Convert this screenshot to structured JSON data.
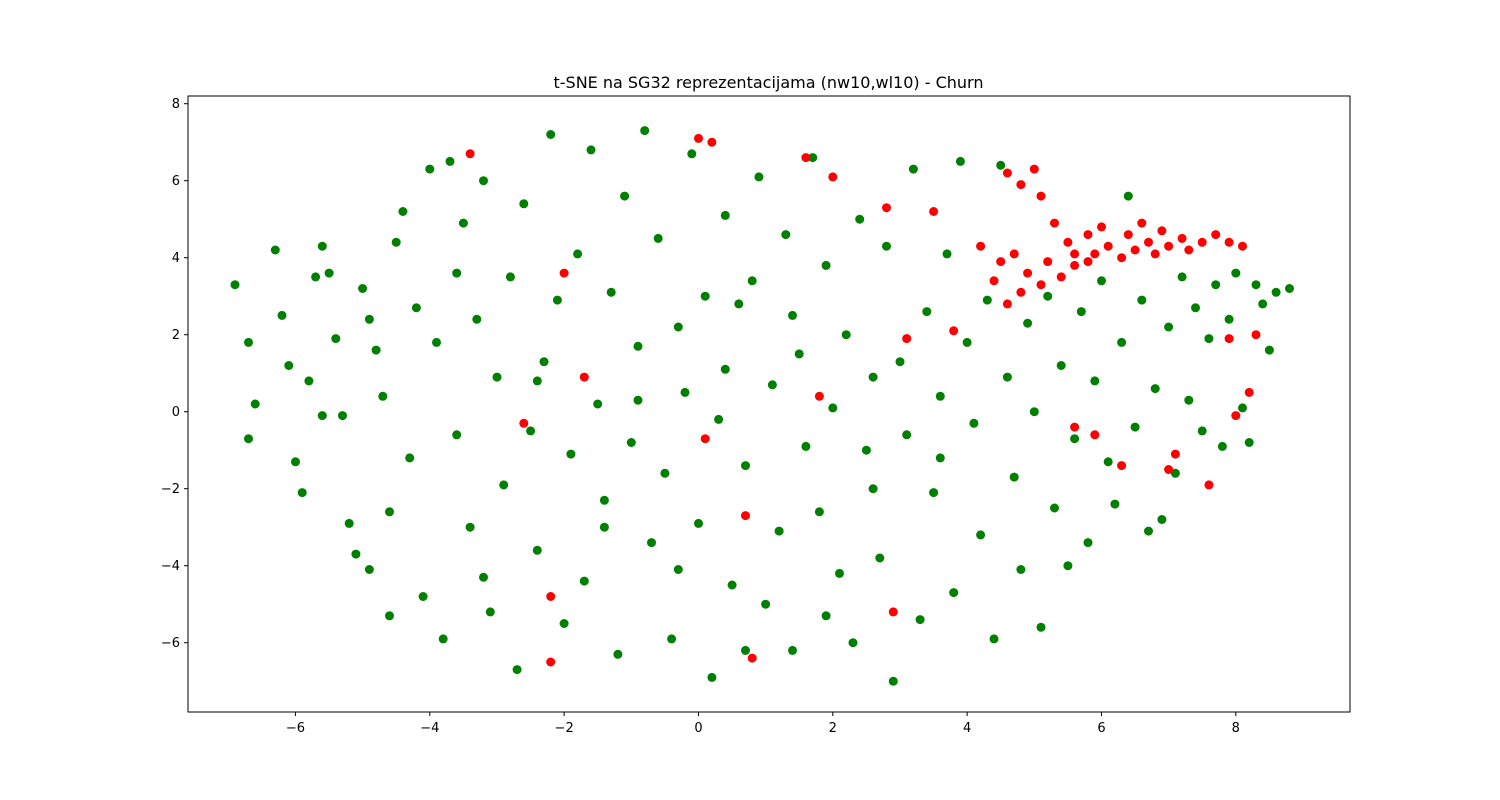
{
  "chart_data": {
    "type": "scatter",
    "title": "t-SNE na SG32 reprezentacijama (nw10,wl10) - Churn",
    "xlabel": "",
    "ylabel": "",
    "xlim": [
      -7.6,
      9.7
    ],
    "ylim": [
      -7.8,
      8.2
    ],
    "grid": false,
    "legend": "none",
    "xticks": [
      -6,
      -4,
      -2,
      0,
      2,
      4,
      6,
      8
    ],
    "yticks": [
      -6,
      -4,
      -2,
      0,
      2,
      4,
      6,
      8
    ],
    "xtick_labels": [
      "−6",
      "−4",
      "−2",
      "0",
      "2",
      "4",
      "6",
      "8"
    ],
    "ytick_labels": [
      "−6",
      "−4",
      "−2",
      "0",
      "2",
      "4",
      "6",
      "8"
    ],
    "colors": {
      "non_churn": "#008000",
      "churn": "#ff0000",
      "axes": "#000000",
      "background": "#ffffff"
    },
    "series": [
      {
        "color": "#008000",
        "points": [
          [
            -6.9,
            3.3
          ],
          [
            -6.7,
            1.8
          ],
          [
            -6.6,
            0.2
          ],
          [
            -6.7,
            -0.7
          ],
          [
            -6.3,
            4.2
          ],
          [
            -6.2,
            2.5
          ],
          [
            -6.1,
            1.2
          ],
          [
            -6.0,
            -1.3
          ],
          [
            -5.9,
            -2.1
          ],
          [
            -5.8,
            0.8
          ],
          [
            -5.7,
            3.5
          ],
          [
            -5.6,
            4.3
          ],
          [
            -5.5,
            3.6
          ],
          [
            -5.4,
            1.9
          ],
          [
            -5.3,
            -0.1
          ],
          [
            -5.2,
            -2.9
          ],
          [
            -5.1,
            -3.7
          ],
          [
            -5.0,
            3.2
          ],
          [
            -4.9,
            -4.1
          ],
          [
            -4.8,
            1.6
          ],
          [
            -4.7,
            0.4
          ],
          [
            -4.6,
            -5.3
          ],
          [
            -4.5,
            4.4
          ],
          [
            -4.4,
            5.2
          ],
          [
            -4.3,
            -1.2
          ],
          [
            -4.2,
            2.7
          ],
          [
            -4.1,
            -4.8
          ],
          [
            -4.0,
            6.3
          ],
          [
            -3.9,
            1.8
          ],
          [
            -3.8,
            -5.9
          ],
          [
            -3.7,
            6.5
          ],
          [
            -3.6,
            -0.6
          ],
          [
            -3.5,
            4.9
          ],
          [
            -3.4,
            -3.0
          ],
          [
            -3.3,
            2.4
          ],
          [
            -3.2,
            6.0
          ],
          [
            -3.1,
            -5.2
          ],
          [
            -3.0,
            0.9
          ],
          [
            -2.9,
            -1.9
          ],
          [
            -2.8,
            3.5
          ],
          [
            -2.7,
            -6.7
          ],
          [
            -2.6,
            5.4
          ],
          [
            -2.5,
            -0.5
          ],
          [
            -2.4,
            -3.6
          ],
          [
            -2.3,
            1.3
          ],
          [
            -2.2,
            7.2
          ],
          [
            -2.1,
            2.9
          ],
          [
            -2.0,
            -5.5
          ],
          [
            -1.9,
            -1.1
          ],
          [
            -1.8,
            4.1
          ],
          [
            -1.7,
            -4.4
          ],
          [
            -1.6,
            6.8
          ],
          [
            -1.5,
            0.2
          ],
          [
            -1.4,
            -2.3
          ],
          [
            -1.3,
            3.1
          ],
          [
            -1.2,
            -6.3
          ],
          [
            -1.1,
            5.6
          ],
          [
            -1.0,
            -0.8
          ],
          [
            -0.9,
            1.7
          ],
          [
            -0.8,
            7.3
          ],
          [
            -0.7,
            -3.4
          ],
          [
            -0.6,
            4.5
          ],
          [
            -0.5,
            -1.6
          ],
          [
            -0.4,
            -5.9
          ],
          [
            -0.3,
            2.2
          ],
          [
            -0.2,
            0.5
          ],
          [
            -0.1,
            6.7
          ],
          [
            0.0,
            -2.9
          ],
          [
            0.1,
            3.0
          ],
          [
            0.2,
            -6.9
          ],
          [
            0.3,
            -0.2
          ],
          [
            0.4,
            5.1
          ],
          [
            0.5,
            -4.5
          ],
          [
            0.6,
            2.8
          ],
          [
            0.7,
            -1.4
          ],
          [
            0.8,
            3.4
          ],
          [
            0.9,
            6.1
          ],
          [
            1.0,
            -5.0
          ],
          [
            1.1,
            0.7
          ],
          [
            1.2,
            -3.1
          ],
          [
            1.3,
            4.6
          ],
          [
            1.4,
            -6.2
          ],
          [
            1.5,
            1.5
          ],
          [
            1.6,
            -0.9
          ],
          [
            1.7,
            6.6
          ],
          [
            1.8,
            -2.6
          ],
          [
            1.9,
            3.8
          ],
          [
            2.0,
            0.1
          ],
          [
            2.1,
            -4.2
          ],
          [
            2.2,
            2.0
          ],
          [
            2.3,
            -6.0
          ],
          [
            2.4,
            5.0
          ],
          [
            2.5,
            -1.0
          ],
          [
            2.6,
            0.9
          ],
          [
            2.7,
            -3.8
          ],
          [
            2.8,
            4.3
          ],
          [
            2.9,
            -7.0
          ],
          [
            3.0,
            1.3
          ],
          [
            3.1,
            -0.6
          ],
          [
            3.2,
            6.3
          ],
          [
            3.3,
            -5.4
          ],
          [
            3.4,
            2.6
          ],
          [
            3.5,
            -2.1
          ],
          [
            3.6,
            0.4
          ],
          [
            3.7,
            4.1
          ],
          [
            3.8,
            -4.7
          ],
          [
            3.9,
            6.5
          ],
          [
            4.0,
            1.8
          ],
          [
            4.1,
            -0.3
          ],
          [
            4.2,
            -3.2
          ],
          [
            4.3,
            2.9
          ],
          [
            4.4,
            -5.9
          ],
          [
            4.5,
            6.4
          ],
          [
            4.6,
            0.9
          ],
          [
            4.7,
            -1.7
          ],
          [
            4.8,
            -4.1
          ],
          [
            4.9,
            2.3
          ],
          [
            5.0,
            0.0
          ],
          [
            5.1,
            -5.6
          ],
          [
            5.2,
            3.0
          ],
          [
            5.3,
            -2.5
          ],
          [
            5.4,
            1.2
          ],
          [
            5.5,
            -4.0
          ],
          [
            5.6,
            -0.7
          ],
          [
            5.7,
            2.6
          ],
          [
            5.8,
            -3.4
          ],
          [
            5.9,
            0.8
          ],
          [
            6.0,
            3.4
          ],
          [
            6.1,
            -1.3
          ],
          [
            6.2,
            -2.4
          ],
          [
            6.3,
            1.8
          ],
          [
            6.4,
            5.6
          ],
          [
            6.5,
            -0.4
          ],
          [
            6.6,
            2.9
          ],
          [
            6.7,
            -3.1
          ],
          [
            6.8,
            0.6
          ],
          [
            6.9,
            -2.8
          ],
          [
            7.0,
            2.2
          ],
          [
            7.1,
            -1.6
          ],
          [
            7.2,
            3.5
          ],
          [
            7.3,
            0.3
          ],
          [
            7.4,
            2.7
          ],
          [
            7.5,
            -0.5
          ],
          [
            7.6,
            1.9
          ],
          [
            7.7,
            3.3
          ],
          [
            7.8,
            -0.9
          ],
          [
            7.9,
            2.4
          ],
          [
            8.0,
            3.6
          ],
          [
            8.1,
            0.1
          ],
          [
            8.2,
            -0.8
          ],
          [
            8.3,
            3.3
          ],
          [
            8.4,
            2.8
          ],
          [
            8.5,
            1.6
          ],
          [
            8.6,
            3.1
          ],
          [
            8.8,
            3.2
          ],
          [
            -5.6,
            -0.1
          ],
          [
            -4.6,
            -2.6
          ],
          [
            -3.2,
            -4.3
          ],
          [
            -1.4,
            -3.0
          ],
          [
            0.7,
            -6.2
          ],
          [
            -2.4,
            0.8
          ],
          [
            -0.9,
            0.3
          ],
          [
            0.4,
            1.1
          ],
          [
            1.4,
            2.5
          ],
          [
            2.6,
            -2.0
          ],
          [
            3.6,
            -1.2
          ],
          [
            -4.9,
            2.4
          ],
          [
            -3.6,
            3.6
          ],
          [
            -0.3,
            -4.1
          ],
          [
            1.9,
            -5.3
          ]
        ]
      },
      {
        "color": "#ff0000",
        "points": [
          [
            4.6,
            6.2
          ],
          [
            4.8,
            5.9
          ],
          [
            5.0,
            6.3
          ],
          [
            5.1,
            5.6
          ],
          [
            5.3,
            4.9
          ],
          [
            5.5,
            4.4
          ],
          [
            5.6,
            3.8
          ],
          [
            5.8,
            4.6
          ],
          [
            5.9,
            4.1
          ],
          [
            6.0,
            4.8
          ],
          [
            6.1,
            4.3
          ],
          [
            6.3,
            4.0
          ],
          [
            6.4,
            4.6
          ],
          [
            6.5,
            4.2
          ],
          [
            6.6,
            4.9
          ],
          [
            6.7,
            4.4
          ],
          [
            6.8,
            4.1
          ],
          [
            6.9,
            4.7
          ],
          [
            7.0,
            4.3
          ],
          [
            7.2,
            4.5
          ],
          [
            7.3,
            4.2
          ],
          [
            7.5,
            4.4
          ],
          [
            7.7,
            4.6
          ],
          [
            7.9,
            4.4
          ],
          [
            8.1,
            4.3
          ],
          [
            4.7,
            4.1
          ],
          [
            4.9,
            3.6
          ],
          [
            5.1,
            3.3
          ],
          [
            5.2,
            3.9
          ],
          [
            5.4,
            3.5
          ],
          [
            5.6,
            4.1
          ],
          [
            5.8,
            3.9
          ],
          [
            4.4,
            3.4
          ],
          [
            4.5,
            3.9
          ],
          [
            4.8,
            3.1
          ],
          [
            4.2,
            4.3
          ],
          [
            4.6,
            2.8
          ],
          [
            7.9,
            1.9
          ],
          [
            8.2,
            0.5
          ],
          [
            7.6,
            -1.9
          ],
          [
            7.0,
            -1.5
          ],
          [
            5.9,
            -0.6
          ],
          [
            5.6,
            -0.4
          ],
          [
            0.8,
            -6.4
          ],
          [
            -2.2,
            -6.5
          ],
          [
            -2.2,
            -4.8
          ],
          [
            -2.0,
            3.6
          ],
          [
            0.1,
            -0.7
          ],
          [
            0.7,
            -2.7
          ],
          [
            0.0,
            7.1
          ],
          [
            0.2,
            7.0
          ],
          [
            1.6,
            6.6
          ],
          [
            2.0,
            6.1
          ],
          [
            2.8,
            5.3
          ],
          [
            3.5,
            5.2
          ],
          [
            2.9,
            -5.2
          ],
          [
            -1.7,
            0.9
          ],
          [
            -2.6,
            -0.3
          ],
          [
            7.1,
            -1.1
          ],
          [
            6.3,
            -1.4
          ],
          [
            1.8,
            0.4
          ],
          [
            3.8,
            2.1
          ],
          [
            3.1,
            1.9
          ],
          [
            8.0,
            -0.1
          ],
          [
            8.3,
            2.0
          ],
          [
            -3.4,
            6.7
          ]
        ]
      }
    ]
  }
}
